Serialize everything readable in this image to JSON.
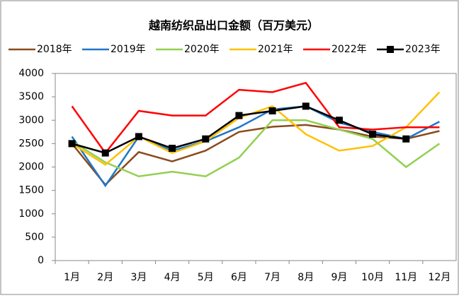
{
  "chart_data": {
    "type": "line",
    "title": "越南纺织品出口金额（百万美元）",
    "categories": [
      "1月",
      "2月",
      "3月",
      "4月",
      "5月",
      "6月",
      "7月",
      "8月",
      "9月",
      "10月",
      "11月",
      "12月"
    ],
    "series": [
      {
        "name": "2018年",
        "color": "#8b4a1c",
        "values": [
          2500,
          1620,
          2320,
          2120,
          2350,
          2750,
          2860,
          2900,
          2800,
          2650,
          2600,
          2770
        ]
      },
      {
        "name": "2019年",
        "color": "#1f77c8",
        "values": [
          2650,
          1600,
          2650,
          2350,
          2550,
          2850,
          3230,
          3300,
          2950,
          2750,
          2600,
          2970
        ]
      },
      {
        "name": "2020年",
        "color": "#92d050",
        "values": [
          2550,
          2100,
          1800,
          1900,
          1800,
          2200,
          3000,
          3000,
          2800,
          2600,
          2000,
          2500
        ]
      },
      {
        "name": "2021年",
        "color": "#ffc000",
        "values": [
          2500,
          2050,
          2650,
          2300,
          2550,
          3050,
          3300,
          2700,
          2350,
          2450,
          2850,
          3600
        ]
      },
      {
        "name": "2022年",
        "color": "#ff0000",
        "values": [
          3300,
          2300,
          3200,
          3100,
          3100,
          3650,
          3600,
          3800,
          2850,
          2800,
          2850,
          2850
        ]
      },
      {
        "name": "2023年",
        "color": "#000000",
        "marker": "square",
        "values": [
          2500,
          2300,
          2650,
          2400,
          2600,
          3100,
          3200,
          3300,
          3000,
          2700,
          2600,
          null
        ]
      }
    ],
    "ylim": [
      0,
      4000
    ],
    "yticks": [
      0,
      500,
      1000,
      1500,
      2000,
      2500,
      3000,
      3500,
      4000
    ],
    "grid": false
  }
}
